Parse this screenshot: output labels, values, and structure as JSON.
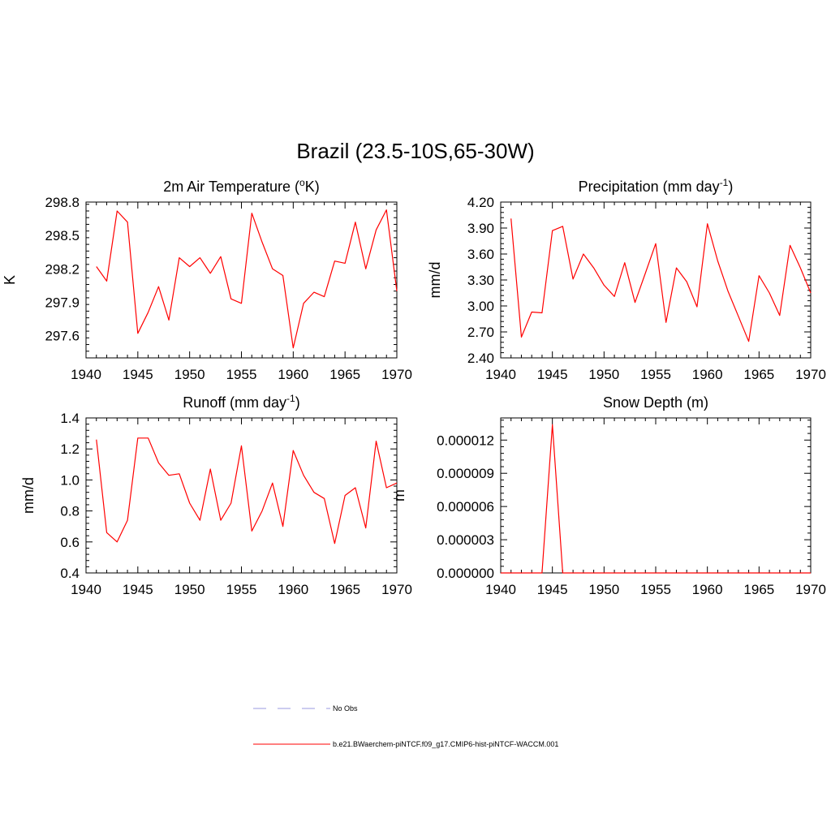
{
  "figure": {
    "title": "Brazil (23.5-10S,65-30W)"
  },
  "legend": [
    {
      "label": "No Obs",
      "color": "#9a9ae0",
      "dash": true
    },
    {
      "label": "b.e21.BWaerchem-piNTCF.f09_g17.CMIP6-hist-piNTCF-WACCM.001",
      "color": "#ff0000",
      "dash": false
    }
  ],
  "chart_data": [
    {
      "type": "line",
      "title": "2m Air Temperature (",
      "title_sup": "o",
      "title_after": "K)",
      "ylabel": "K",
      "xlim": [
        1940,
        1970
      ],
      "ylim": [
        297.4,
        298.8
      ],
      "xticks": [
        1940,
        1945,
        1950,
        1955,
        1960,
        1965,
        1970
      ],
      "yticks": [
        297.6,
        297.9,
        298.2,
        298.5,
        298.8
      ],
      "ytick_labels": [
        "297.6",
        "297.9",
        "298.2",
        "298.5",
        "298.8"
      ],
      "series": [
        {
          "color": "#ff0000",
          "x": [
            1941,
            1942,
            1943,
            1944,
            1945,
            1946,
            1947,
            1948,
            1949,
            1950,
            1951,
            1952,
            1953,
            1954,
            1955,
            1956,
            1957,
            1958,
            1959,
            1960,
            1961,
            1962,
            1963,
            1964,
            1965,
            1966,
            1967,
            1968,
            1969,
            1970
          ],
          "y": [
            298.22,
            298.09,
            298.72,
            298.62,
            297.62,
            297.81,
            298.04,
            297.74,
            298.3,
            298.22,
            298.3,
            298.16,
            298.31,
            297.93,
            297.89,
            298.7,
            298.44,
            298.2,
            298.14,
            297.49,
            297.89,
            297.99,
            297.95,
            298.27,
            298.25,
            298.62,
            298.2,
            298.55,
            298.73,
            298.0
          ]
        }
      ]
    },
    {
      "type": "line",
      "title": "Precipitation (mm day",
      "title_sup": "-1",
      "title_after": ")",
      "ylabel": "mm/d",
      "xlim": [
        1940,
        1970
      ],
      "ylim": [
        2.4,
        4.2
      ],
      "xticks": [
        1940,
        1945,
        1950,
        1955,
        1960,
        1965,
        1970
      ],
      "yticks": [
        2.4,
        2.7,
        3.0,
        3.3,
        3.6,
        3.9,
        4.2
      ],
      "ytick_labels": [
        "2.40",
        "2.70",
        "3.00",
        "3.30",
        "3.60",
        "3.90",
        "4.20"
      ],
      "series": [
        {
          "color": "#ff0000",
          "x": [
            1941,
            1942,
            1943,
            1944,
            1945,
            1946,
            1947,
            1948,
            1949,
            1950,
            1951,
            1952,
            1953,
            1954,
            1955,
            1956,
            1957,
            1958,
            1959,
            1960,
            1961,
            1962,
            1963,
            1964,
            1965,
            1966,
            1967,
            1968,
            1969,
            1970
          ],
          "y": [
            4.01,
            2.64,
            2.93,
            2.92,
            3.87,
            3.92,
            3.31,
            3.6,
            3.44,
            3.24,
            3.11,
            3.5,
            3.04,
            3.38,
            3.72,
            2.81,
            3.44,
            3.28,
            2.99,
            3.95,
            3.52,
            3.17,
            2.88,
            2.59,
            3.35,
            3.15,
            2.89,
            3.7,
            3.44,
            3.15
          ]
        }
      ]
    },
    {
      "type": "line",
      "title": "Runoff (mm day",
      "title_sup": "-1",
      "title_after": ")",
      "ylabel": "mm/d",
      "xlim": [
        1940,
        1970
      ],
      "ylim": [
        0.4,
        1.4
      ],
      "xticks": [
        1940,
        1945,
        1950,
        1955,
        1960,
        1965,
        1970
      ],
      "yticks": [
        0.4,
        0.6,
        0.8,
        1.0,
        1.2,
        1.4
      ],
      "ytick_labels": [
        "0.4",
        "0.6",
        "0.8",
        "1.0",
        "1.2",
        "1.4"
      ],
      "series": [
        {
          "color": "#ff0000",
          "x": [
            1941,
            1942,
            1943,
            1944,
            1945,
            1946,
            1947,
            1948,
            1949,
            1950,
            1951,
            1952,
            1953,
            1954,
            1955,
            1956,
            1957,
            1958,
            1959,
            1960,
            1961,
            1962,
            1963,
            1964,
            1965,
            1966,
            1967,
            1968,
            1969,
            1970
          ],
          "y": [
            1.26,
            0.66,
            0.6,
            0.74,
            1.27,
            1.27,
            1.11,
            1.03,
            1.04,
            0.85,
            0.74,
            1.07,
            0.74,
            0.85,
            1.22,
            0.67,
            0.8,
            0.98,
            0.7,
            1.19,
            1.03,
            0.92,
            0.88,
            0.59,
            0.9,
            0.95,
            0.69,
            1.25,
            0.95,
            0.98
          ]
        }
      ]
    },
    {
      "type": "line",
      "title": "Snow Depth (m)",
      "title_sup": "",
      "title_after": "",
      "ylabel": "m",
      "xlim": [
        1940,
        1970
      ],
      "ylim": [
        0.0,
        1.4e-05
      ],
      "xticks": [
        1940,
        1945,
        1950,
        1955,
        1960,
        1965,
        1970
      ],
      "yticks": [
        0.0,
        3e-06,
        6e-06,
        9e-06,
        1.2e-05
      ],
      "ytick_labels": [
        "0.000000",
        "0.000003",
        "0.000006",
        "0.000009",
        "0.000012"
      ],
      "series": [
        {
          "color": "#ff0000",
          "x": [
            1940,
            1941,
            1942,
            1943,
            1944,
            1945,
            1946,
            1947,
            1948,
            1949,
            1950,
            1951,
            1952,
            1953,
            1954,
            1955,
            1956,
            1957,
            1958,
            1959,
            1960,
            1961,
            1962,
            1963,
            1964,
            1965,
            1966,
            1967,
            1968,
            1969,
            1970
          ],
          "y": [
            0,
            0,
            0,
            0,
            0,
            1.34e-05,
            0,
            0,
            0,
            0,
            0,
            0,
            0,
            0,
            0,
            0,
            0,
            0,
            0,
            0,
            0,
            0,
            0,
            0,
            0,
            0,
            0,
            0,
            0,
            0,
            0
          ]
        }
      ]
    }
  ]
}
